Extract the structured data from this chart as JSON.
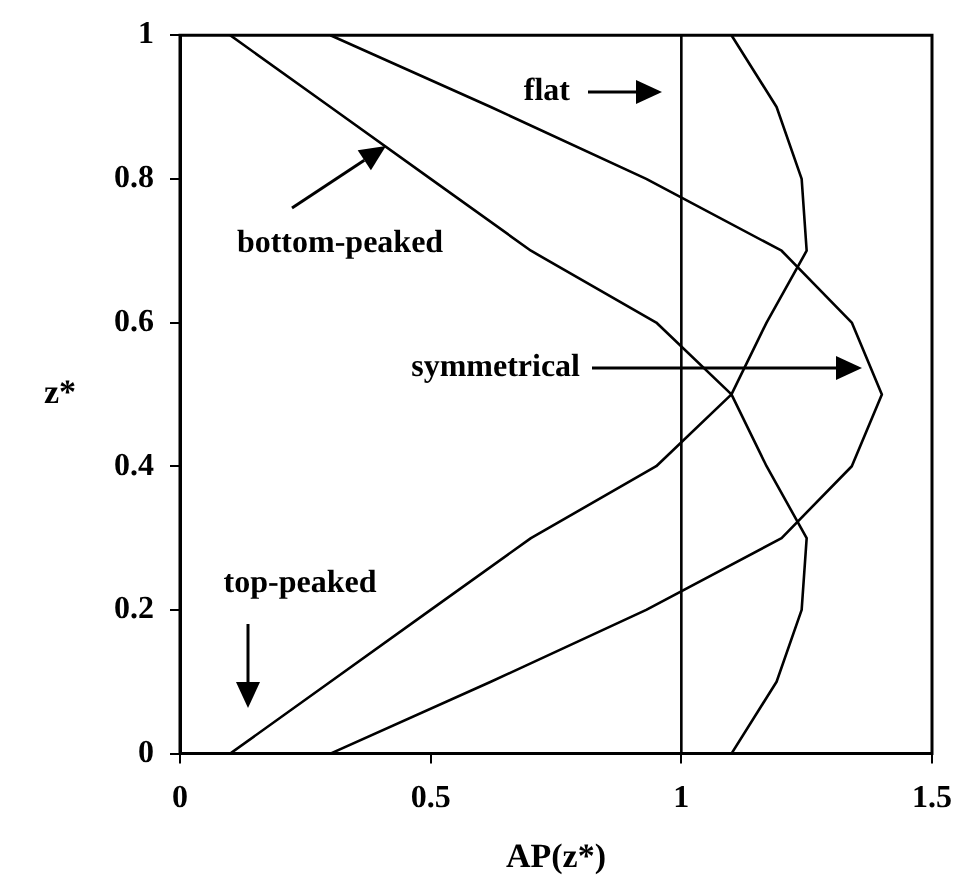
{
  "chart_data": {
    "type": "line",
    "xlabel": "AP(z*)",
    "ylabel": "z*",
    "xlim": [
      0,
      1.5
    ],
    "xticks": [
      0,
      0.5,
      1,
      1.5
    ],
    "ylim": [
      0,
      1
    ],
    "yticks": [
      0,
      0.2,
      0.4,
      0.6,
      0.8,
      1
    ],
    "series": [
      {
        "color": "#000000",
        "x": [
          0.1,
          0.3,
          0.5,
          0.7,
          0.95,
          1.1,
          1.17,
          1.25,
          1.24,
          1.19,
          1.1
        ],
        "values": [
          0,
          0.1,
          0.2,
          0.3,
          0.4,
          0.5,
          0.6,
          0.7,
          0.8,
          0.9,
          1
        ]
      },
      {
        "color": "#000000",
        "x": [
          1.1,
          1.19,
          1.24,
          1.25,
          1.17,
          1.1,
          0.95,
          0.7,
          0.5,
          0.3,
          0.1
        ],
        "values": [
          0,
          0.1,
          0.2,
          0.3,
          0.4,
          0.5,
          0.6,
          0.7,
          0.8,
          0.9,
          1
        ]
      },
      {
        "color": "#000000",
        "x": [
          0.3,
          0.62,
          0.93,
          1.2,
          1.34,
          1.4,
          1.34,
          1.2,
          0.93,
          0.62,
          0.3
        ],
        "values": [
          0,
          0.1,
          0.2,
          0.3,
          0.4,
          0.5,
          0.6,
          0.7,
          0.8,
          0.9,
          1
        ]
      }
    ],
    "ref_lines": [
      {
        "axis": "x",
        "value": 1,
        "color": "#000000",
        "line_style": "solid"
      }
    ],
    "annotations": [
      "flat",
      "bottom-peaked",
      "symmetrical",
      "top-peaked"
    ],
    "legend": false,
    "marker": "none",
    "line_style": "solid"
  }
}
